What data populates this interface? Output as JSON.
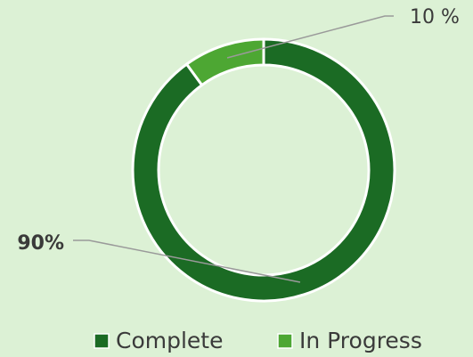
{
  "chart_data": {
    "type": "donut",
    "categories": [
      "Complete",
      "In Progress"
    ],
    "values": [
      90,
      10
    ],
    "value_labels": [
      "90%",
      "10 %"
    ],
    "colors": [
      "#1b6b24",
      "#4da733"
    ],
    "legend": "bottom"
  }
}
